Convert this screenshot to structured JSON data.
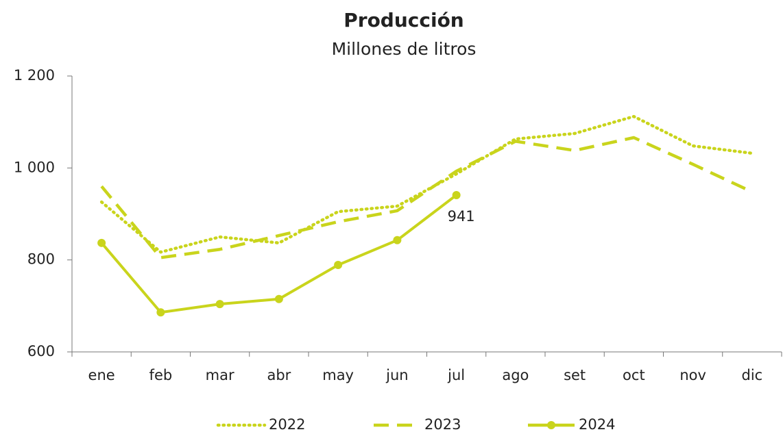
{
  "chart_data": {
    "type": "line",
    "title": "Producción",
    "subtitle": "Millones de litros",
    "categories": [
      "ene",
      "feb",
      "mar",
      "abr",
      "may",
      "jun",
      "jul",
      "ago",
      "set",
      "oct",
      "nov",
      "dic"
    ],
    "series": [
      {
        "name": "2022",
        "color": "#c9d41c",
        "style": "dotted",
        "markers": false,
        "values": [
          926,
          817,
          850,
          837,
          905,
          917,
          987,
          1063,
          1075,
          1112,
          1048,
          1032
        ]
      },
      {
        "name": "2023",
        "color": "#c9d41c",
        "style": "dashed",
        "markers": false,
        "values": [
          960,
          805,
          823,
          853,
          883,
          907,
          993,
          1058,
          1038,
          1066,
          1008,
          948
        ]
      },
      {
        "name": "2024",
        "color": "#c9d41c",
        "style": "solid",
        "markers": true,
        "values": [
          837,
          686,
          704,
          715,
          789,
          843,
          941,
          null,
          null,
          null,
          null,
          null
        ],
        "value_labels": [
          null,
          null,
          null,
          null,
          null,
          null,
          "941",
          null,
          null,
          null,
          null,
          null
        ]
      }
    ],
    "ylim": [
      600,
      1200
    ],
    "yticks": [
      600,
      800,
      {
        "value": 1000,
        "label": "1 000"
      },
      {
        "value": 1200,
        "label": "1 200"
      }
    ],
    "legend": "bottom"
  }
}
